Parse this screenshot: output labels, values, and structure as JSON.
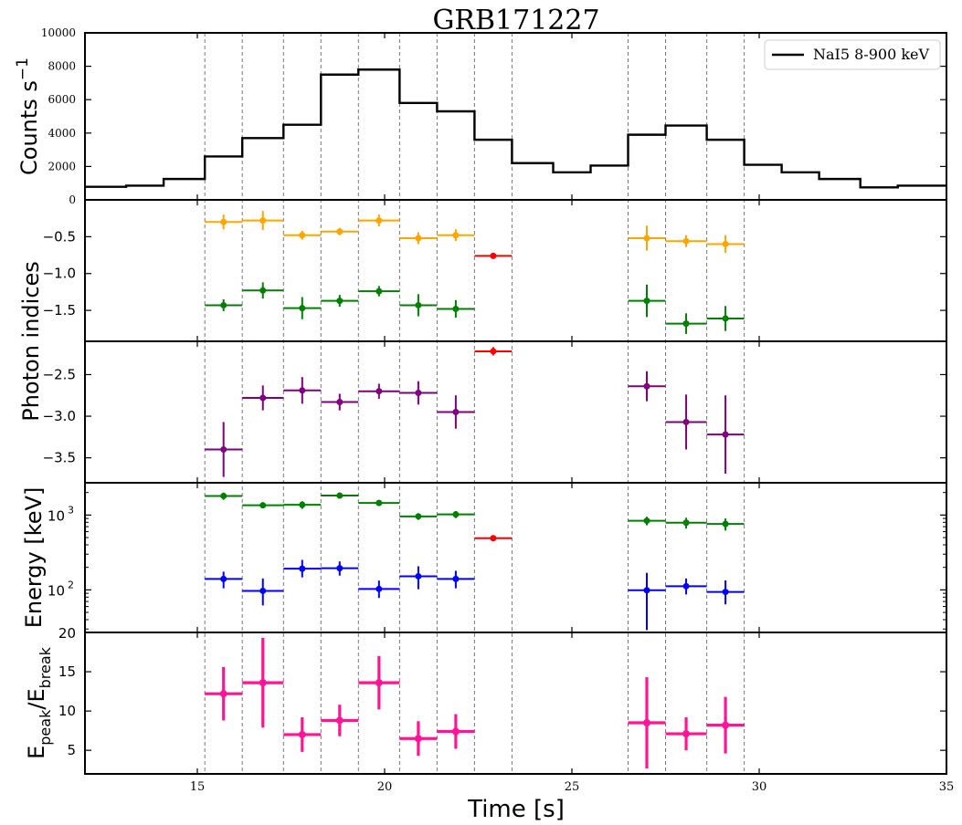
{
  "chart_data": {
    "type": "scatter",
    "title": "GRB171227",
    "xlabel": "Time [s]",
    "xlim": [
      12,
      35
    ],
    "x_ticks": [
      "15",
      "20",
      "25",
      "30",
      "35"
    ],
    "grid": false,
    "interval_edges": [
      15.2,
      16.2,
      17.3,
      18.3,
      19.3,
      20.4,
      21.4,
      22.4,
      23.4,
      26.5,
      27.5,
      28.6,
      29.6
    ],
    "panels": [
      {
        "id": "lightcurve",
        "ylabel": "Counts s",
        "ylabel_sup": "−1",
        "ylim": [
          0,
          10000
        ],
        "yticks": [
          "0",
          "2000",
          "4000",
          "6000",
          "8000",
          "10000"
        ],
        "legend": "NaI5 8-900 keV",
        "legend_position": "top-right",
        "series": [
          {
            "name": "NaI5 8-900 keV",
            "style": "step",
            "color": "#000000",
            "bin_edges": [
              12,
              13.1,
              14.1,
              15.2,
              16.2,
              17.3,
              18.3,
              19.3,
              20.4,
              21.4,
              22.4,
              23.4,
              24.5,
              25.5,
              26.5,
              27.5,
              28.6,
              29.6,
              30.6,
              31.6,
              32.7,
              33.7,
              35
            ],
            "values": [
              780,
              850,
              1250,
              2600,
              3700,
              4500,
              7500,
              7800,
              5800,
              5300,
              3600,
              2200,
              1650,
              2050,
              3900,
              4450,
              3600,
              2100,
              1650,
              1250,
              750,
              850
            ]
          }
        ]
      },
      {
        "id": "photon-indices-alpha",
        "ylabel": "Photon indices",
        "ylim": [
          -1.92,
          0.0
        ],
        "yticks": [
          "−0.5",
          "−1.0",
          "−1.5"
        ],
        "series": [
          {
            "color": "#ffa500",
            "x_lo": [
              15.2,
              16.2,
              17.3,
              18.3,
              19.3,
              20.4,
              21.4,
              26.5,
              27.5,
              28.6
            ],
            "x_hi": [
              16.2,
              17.3,
              18.3,
              19.3,
              20.4,
              21.4,
              22.4,
              27.5,
              28.6,
              29.6
            ],
            "x": [
              15.7,
              16.75,
              17.8,
              18.8,
              19.85,
              20.9,
              21.9,
              27.0,
              28.05,
              29.1
            ],
            "y": [
              -0.3,
              -0.28,
              -0.48,
              -0.43,
              -0.28,
              -0.52,
              -0.48,
              -0.52,
              -0.56,
              -0.6
            ],
            "yerr": [
              0.1,
              0.13,
              0.06,
              0.05,
              0.08,
              0.08,
              0.08,
              0.17,
              0.08,
              0.12
            ]
          },
          {
            "color": "#008000",
            "x_lo": [
              15.2,
              16.2,
              17.3,
              18.3,
              19.3,
              20.4,
              21.4,
              26.5,
              27.5,
              28.6
            ],
            "x_hi": [
              16.2,
              17.3,
              18.3,
              19.3,
              20.4,
              21.4,
              22.4,
              27.5,
              28.6,
              29.6
            ],
            "x": [
              15.7,
              16.75,
              17.8,
              18.8,
              19.85,
              20.9,
              21.9,
              27.0,
              28.05,
              29.1
            ],
            "y": [
              -1.43,
              -1.23,
              -1.47,
              -1.37,
              -1.24,
              -1.43,
              -1.48,
              -1.37,
              -1.68,
              -1.61
            ],
            "yerr": [
              0.08,
              0.11,
              0.15,
              0.08,
              0.07,
              0.15,
              0.12,
              0.22,
              0.14,
              0.17
            ]
          },
          {
            "color": "#ff0000",
            "x_lo": [
              22.4
            ],
            "x_hi": [
              23.4
            ],
            "x": [
              22.9
            ],
            "y": [
              -0.76
            ],
            "yerr": [
              0.03
            ]
          }
        ]
      },
      {
        "id": "photon-indices-beta",
        "ylim": [
          -3.8,
          -2.1
        ],
        "yticks": [
          "−2.5",
          "−3.0",
          "−3.5"
        ],
        "series": [
          {
            "color": "#800080",
            "x_lo": [
              15.2,
              16.2,
              17.3,
              18.3,
              19.3,
              20.4,
              21.4,
              26.5,
              27.5,
              28.6
            ],
            "x_hi": [
              16.2,
              17.3,
              18.3,
              19.3,
              20.4,
              21.4,
              22.4,
              27.5,
              28.6,
              29.6
            ],
            "x": [
              15.7,
              16.75,
              17.8,
              18.8,
              19.85,
              20.9,
              21.9,
              27.0,
              28.05,
              29.1
            ],
            "y": [
              -3.4,
              -2.78,
              -2.69,
              -2.83,
              -2.7,
              -2.72,
              -2.95,
              -2.64,
              -3.07,
              -3.22
            ],
            "yerr": [
              0.33,
              0.15,
              0.16,
              0.1,
              0.09,
              0.14,
              0.2,
              0.18,
              0.33,
              0.47
            ]
          },
          {
            "color": "#ff0000",
            "x_lo": [
              22.4
            ],
            "x_hi": [
              23.4
            ],
            "x": [
              22.9
            ],
            "y": [
              -2.22
            ],
            "yerr": [
              0.05
            ]
          }
        ]
      },
      {
        "id": "energy",
        "ylabel": "Energy [keV]",
        "yscale": "log",
        "ylim": [
          27,
          2700
        ],
        "yticks": [
          "10",
          "10"
        ],
        "ytick_sups": [
          "3",
          "2"
        ],
        "ytick_values": [
          1000,
          100
        ],
        "bottom_label": "20",
        "series": [
          {
            "color": "#008000",
            "x_lo": [
              15.2,
              16.2,
              17.3,
              18.3,
              19.3,
              20.4,
              21.4,
              26.5,
              27.5,
              28.6
            ],
            "x_hi": [
              16.2,
              17.3,
              18.3,
              19.3,
              20.4,
              21.4,
              22.4,
              27.5,
              28.6,
              29.6
            ],
            "x": [
              15.7,
              16.75,
              17.8,
              18.8,
              19.85,
              20.9,
              21.9,
              27.0,
              28.05,
              29.1
            ],
            "y": [
              1800,
              1350,
              1370,
              1820,
              1450,
              960,
              1020,
              840,
              790,
              760
            ],
            "yerr_lo": [
              200,
              120,
              160,
              120,
              100,
              100,
              110,
              110,
              130,
              140
            ],
            "yerr_hi": [
              200,
              120,
              160,
              120,
              100,
              100,
              110,
              110,
              130,
              140
            ]
          },
          {
            "color": "#0000ff",
            "x_lo": [
              15.2,
              16.2,
              17.3,
              18.3,
              19.3,
              20.4,
              21.4,
              26.5,
              27.5,
              28.6
            ],
            "x_hi": [
              16.2,
              17.3,
              18.3,
              19.3,
              20.4,
              21.4,
              22.4,
              27.5,
              28.6,
              29.6
            ],
            "x": [
              15.7,
              16.75,
              17.8,
              18.8,
              19.85,
              20.9,
              21.9,
              27.0,
              28.05,
              29.1
            ],
            "y": [
              140,
              97,
              192,
              195,
              103,
              152,
              140,
              99,
              112,
              94
            ],
            "yerr_lo": [
              35,
              35,
              45,
              40,
              25,
              50,
              35,
              70,
              25,
              30
            ],
            "yerr_hi": [
              35,
              45,
              60,
              45,
              30,
              55,
              40,
              70,
              30,
              40
            ]
          },
          {
            "color": "#ff0000",
            "x_lo": [
              22.4
            ],
            "x_hi": [
              23.4
            ],
            "x": [
              22.9
            ],
            "y": [
              490
            ],
            "yerr_lo": [
              30
            ],
            "yerr_hi": [
              30
            ]
          }
        ]
      },
      {
        "id": "epeak-ratio",
        "ylabel": "E",
        "ylabel_sub1": "peak",
        "ylabel_mid": "/E",
        "ylabel_sub2": "break",
        "ylim": [
          2,
          20
        ],
        "yticks": [
          "5",
          "10",
          "15",
          "20"
        ],
        "series": [
          {
            "color": "#ff1493",
            "x_lo": [
              15.2,
              16.2,
              17.3,
              18.3,
              19.3,
              20.4,
              21.4,
              26.5,
              27.5,
              28.6
            ],
            "x_hi": [
              16.2,
              17.3,
              18.3,
              19.3,
              20.4,
              21.4,
              22.4,
              27.5,
              28.6,
              29.6
            ],
            "x": [
              15.7,
              16.75,
              17.8,
              18.8,
              19.85,
              20.9,
              21.9,
              27.0,
              28.05,
              29.1
            ],
            "y": [
              12.2,
              13.6,
              7.0,
              8.8,
              13.6,
              6.5,
              7.4,
              8.5,
              7.1,
              8.2
            ],
            "yerr": [
              3.4,
              5.7,
              2.2,
              2.0,
              3.4,
              2.2,
              2.2,
              5.8,
              2.1,
              3.6
            ]
          }
        ]
      }
    ]
  }
}
